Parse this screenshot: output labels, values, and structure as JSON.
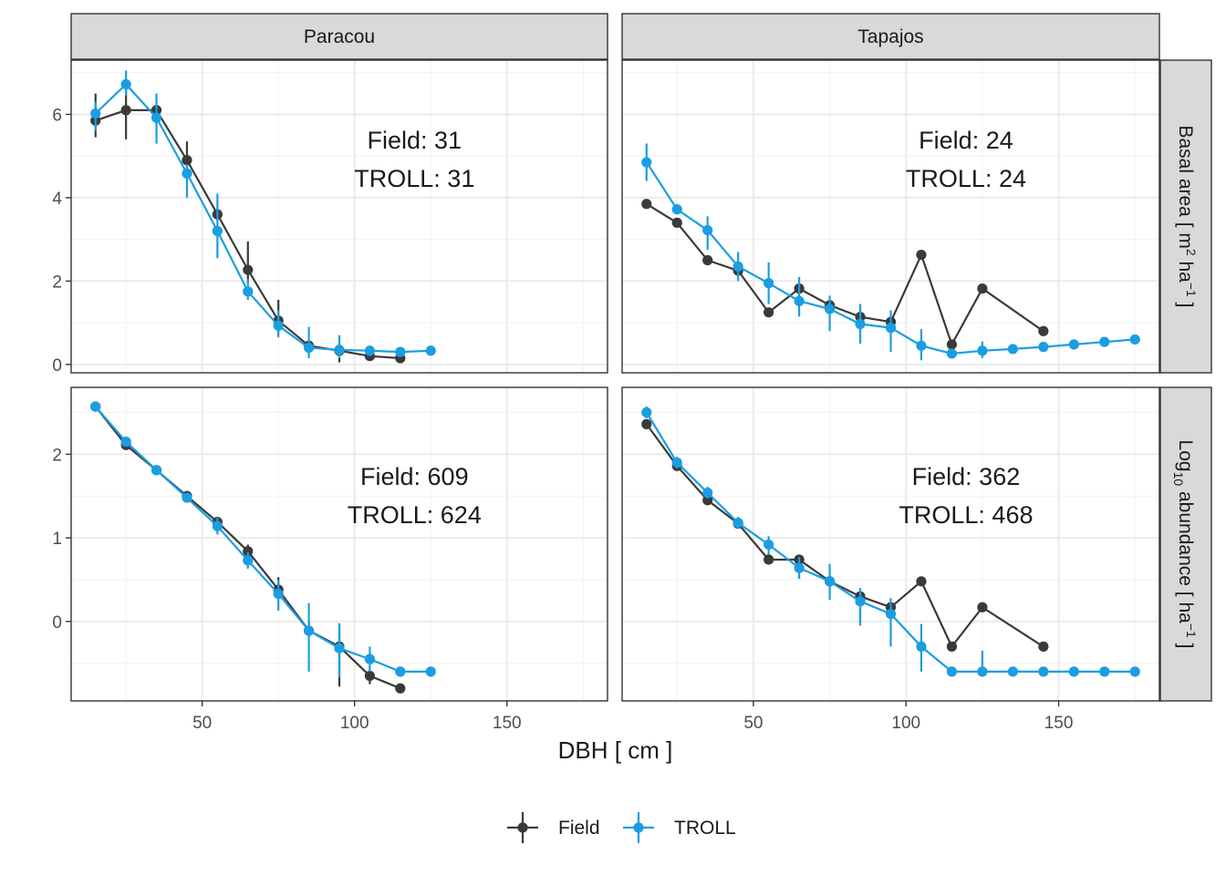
{
  "chart_data": {
    "type": "line",
    "facet_columns": [
      "Paracou",
      "Tapajos"
    ],
    "facet_rows": [
      {
        "key": "basal",
        "ylabel_html": "Basal area [ m<tspan dy=\"-8\" font-size=\"14\">2</tspan><tspan dy=\"8\"> ha</tspan><tspan dy=\"-8\" font-size=\"14\">−1</tspan><tspan dy=\"8\"> ]</tspan>",
        "ylim": [
          -0.2,
          7.3
        ],
        "yticks": [
          0,
          2,
          4,
          6
        ],
        "ytick_labels": [
          "0",
          "2",
          "4",
          "6"
        ]
      },
      {
        "key": "abund",
        "ylabel_html": "Log<tspan dy=\"6\" font-size=\"14\">10</tspan><tspan dy=\"-6\"> abundance [ ha</tspan><tspan dy=\"-8\" font-size=\"14\">−1</tspan><tspan dy=\"8\"> ]</tspan>",
        "ylim": [
          -0.95,
          2.8
        ],
        "yticks": [
          0,
          1,
          2
        ],
        "ytick_labels": [
          "0",
          "1",
          "2"
        ]
      }
    ],
    "xlabel": "DBH [ cm ]",
    "xlim": [
      7,
      183
    ],
    "xticks": [
      50,
      100,
      150
    ],
    "xtick_labels": [
      "50",
      "100",
      "150"
    ],
    "series_meta": [
      {
        "name": "Field",
        "color": "#3a3a3a"
      },
      {
        "name": "TROLL",
        "color": "#1b9de2"
      }
    ],
    "panels": [
      {
        "column": "Paracou",
        "row": "basal",
        "annotation": [
          "Field: 31",
          "TROLL: 31"
        ],
        "series": {
          "Field": {
            "x": [
              15,
              25,
              35,
              45,
              55,
              65,
              75,
              85,
              95,
              105,
              115
            ],
            "y": [
              5.85,
              6.1,
              6.1,
              4.9,
              3.6,
              2.27,
              1.05,
              0.45,
              0.33,
              0.2,
              0.15
            ],
            "err": [
              [
                5.45,
                6.5
              ],
              [
                5.4,
                6.7
              ],
              [
                5.95,
                6.2
              ],
              [
                4.5,
                5.35
              ],
              [
                3.45,
                3.75
              ],
              [
                1.95,
                2.95
              ],
              [
                0.75,
                1.55
              ],
              [
                0.35,
                0.55
              ],
              [
                0.05,
                0.5
              ],
              null,
              null
            ]
          },
          "TROLL": {
            "x": [
              15,
              25,
              35,
              45,
              55,
              65,
              75,
              85,
              95,
              105,
              115,
              125
            ],
            "y": [
              6.02,
              6.72,
              5.92,
              4.58,
              3.2,
              1.75,
              0.93,
              0.4,
              0.35,
              0.33,
              0.3,
              0.33
            ],
            "err": [
              [
                5.6,
                6.3
              ],
              [
                6.45,
                7.05
              ],
              [
                5.3,
                6.5
              ],
              [
                4.0,
                4.8
              ],
              [
                2.55,
                4.1
              ],
              [
                1.55,
                2.05
              ],
              [
                0.65,
                1.3
              ],
              [
                0.15,
                0.9
              ],
              [
                0.15,
                0.7
              ],
              [
                0.2,
                0.45
              ],
              null,
              null
            ]
          }
        }
      },
      {
        "column": "Tapajos",
        "row": "basal",
        "annotation": [
          "Field: 24",
          "TROLL: 24"
        ],
        "series": {
          "Field": {
            "x": [
              15,
              25,
              35,
              45,
              55,
              65,
              75,
              85,
              95,
              105,
              115,
              125,
              145
            ],
            "y": [
              3.85,
              3.4,
              2.5,
              2.25,
              1.25,
              1.82,
              1.42,
              1.14,
              1.02,
              2.63,
              0.48,
              1.82,
              0.8
            ],
            "err": [
              null,
              null,
              null,
              null,
              null,
              null,
              null,
              null,
              null,
              null,
              null,
              null,
              null
            ]
          },
          "TROLL": {
            "x": [
              15,
              25,
              35,
              45,
              55,
              65,
              75,
              85,
              95,
              105,
              115,
              125,
              135,
              145,
              155,
              165,
              175
            ],
            "y": [
              4.85,
              3.72,
              3.22,
              2.35,
              1.95,
              1.52,
              1.33,
              0.97,
              0.88,
              0.45,
              0.26,
              0.33,
              0.37,
              0.42,
              0.48,
              0.54,
              0.6
            ],
            "err": [
              [
                4.4,
                5.3
              ],
              [
                3.6,
                3.85
              ],
              [
                2.75,
                3.55
              ],
              [
                2.0,
                2.7
              ],
              [
                1.45,
                2.45
              ],
              [
                1.15,
                2.1
              ],
              [
                0.8,
                1.65
              ],
              [
                0.5,
                1.45
              ],
              [
                0.3,
                1.3
              ],
              [
                0.1,
                0.85
              ],
              null,
              [
                0.15,
                0.55
              ],
              null,
              null,
              null,
              null,
              null
            ]
          }
        }
      },
      {
        "column": "Paracou",
        "row": "abund",
        "annotation": [
          "Field: 609",
          "TROLL: 624"
        ],
        "series": {
          "Field": {
            "x": [
              15,
              25,
              35,
              45,
              55,
              65,
              75,
              85,
              95,
              105,
              115
            ],
            "y": [
              2.57,
              2.11,
              1.81,
              1.5,
              1.19,
              0.84,
              0.38,
              -0.11,
              -0.3,
              -0.65,
              -0.8
            ],
            "err": [
              null,
              [
                2.08,
                2.16
              ],
              null,
              [
                1.45,
                1.56
              ],
              [
                1.14,
                1.25
              ],
              [
                0.76,
                0.92
              ],
              [
                0.28,
                0.53
              ],
              [
                -0.18,
                0.0
              ],
              [
                -0.78,
                -0.05
              ],
              [
                -0.75,
                -0.55
              ],
              null
            ]
          },
          "TROLL": {
            "x": [
              15,
              25,
              35,
              45,
              55,
              65,
              75,
              85,
              95,
              105,
              115,
              125
            ],
            "y": [
              2.57,
              2.15,
              1.81,
              1.48,
              1.14,
              0.73,
              0.33,
              -0.11,
              -0.32,
              -0.45,
              -0.6,
              -0.6
            ],
            "err": [
              null,
              [
                2.1,
                2.2
              ],
              [
                1.76,
                1.86
              ],
              [
                1.43,
                1.53
              ],
              [
                1.04,
                1.24
              ],
              [
                0.63,
                0.83
              ],
              [
                0.13,
                0.5
              ],
              [
                -0.6,
                0.22
              ],
              [
                -0.67,
                -0.02
              ],
              [
                -0.6,
                -0.3
              ],
              null,
              null
            ]
          }
        }
      },
      {
        "column": "Tapajos",
        "row": "abund",
        "annotation": [
          "Field: 362",
          "TROLL: 468"
        ],
        "series": {
          "Field": {
            "x": [
              15,
              25,
              35,
              45,
              55,
              65,
              75,
              85,
              95,
              105,
              115,
              125,
              145
            ],
            "y": [
              2.36,
              1.86,
              1.45,
              1.17,
              0.74,
              0.74,
              0.48,
              0.3,
              0.17,
              0.48,
              -0.3,
              0.17,
              -0.3
            ],
            "err": [
              null,
              null,
              null,
              null,
              null,
              null,
              null,
              null,
              null,
              null,
              null,
              null,
              null
            ]
          },
          "TROLL": {
            "x": [
              15,
              25,
              35,
              45,
              55,
              65,
              75,
              85,
              95,
              105,
              115,
              125,
              135,
              145,
              155,
              165,
              175
            ],
            "y": [
              2.5,
              1.9,
              1.54,
              1.18,
              0.92,
              0.64,
              0.48,
              0.24,
              0.09,
              -0.3,
              -0.6,
              -0.6,
              -0.6,
              -0.6,
              -0.6,
              -0.6,
              -0.6
            ],
            "err": [
              [
                2.43,
                2.57
              ],
              [
                1.83,
                1.97
              ],
              [
                1.47,
                1.61
              ],
              [
                1.11,
                1.25
              ],
              [
                0.8,
                1.02
              ],
              [
                0.51,
                0.77
              ],
              [
                0.26,
                0.69
              ],
              [
                -0.05,
                0.4
              ],
              [
                -0.3,
                0.28
              ],
              [
                -0.6,
                -0.03
              ],
              null,
              [
                -0.6,
                -0.35
              ],
              null,
              null,
              null,
              null,
              null
            ]
          }
        }
      }
    ],
    "legend": {
      "position": "bottom",
      "items": [
        "Field",
        "TROLL"
      ]
    }
  }
}
